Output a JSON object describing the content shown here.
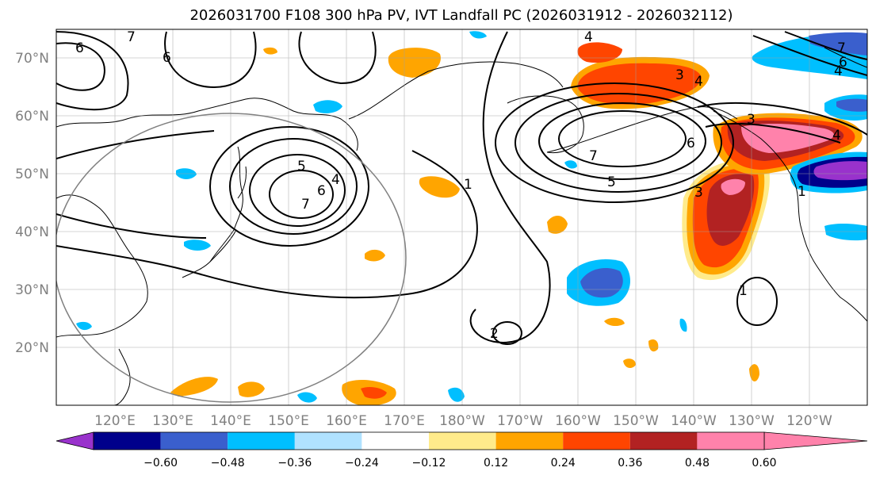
{
  "title": "2026031700 F108 300 hPa PV, IVT Landfall PC (2026031912 - 2026032112)",
  "map": {
    "projection": "PlateCarree",
    "lon_range_east": [
      110,
      250
    ],
    "lat_range": [
      10,
      75
    ],
    "lat_ticks": [
      "20°N",
      "30°N",
      "40°N",
      "50°N",
      "60°N",
      "70°N"
    ],
    "lon_ticks": [
      "120°E",
      "130°E",
      "140°E",
      "150°E",
      "160°E",
      "170°E",
      "180°W",
      "170°W",
      "160°W",
      "150°W",
      "140°W",
      "130°W",
      "120°W"
    ],
    "land_color": "#000000",
    "grid_color": "#a0a0a0"
  },
  "pv_contour_labels": [
    "6",
    "7",
    "5",
    "4",
    "6",
    "7",
    "1",
    "4",
    "3",
    "4",
    "6",
    "7",
    "5",
    "6",
    "3",
    "4",
    "3",
    "1",
    "2",
    "1",
    "7",
    "6",
    "4"
  ],
  "colorbar": {
    "tick_labels": [
      "−0.60",
      "−0.48",
      "−0.36",
      "−0.24",
      "−0.12",
      "0.12",
      "0.24",
      "0.36",
      "0.48",
      "0.60"
    ],
    "colors": [
      "#9932cc",
      "#00008b",
      "#3a5fcd",
      "#00bfff",
      "#b0e2ff",
      "#ffffff",
      "#ffeb8b",
      "#ffa500",
      "#ff4500",
      "#b22222",
      "#ff82ab"
    ],
    "extend": "both"
  }
}
